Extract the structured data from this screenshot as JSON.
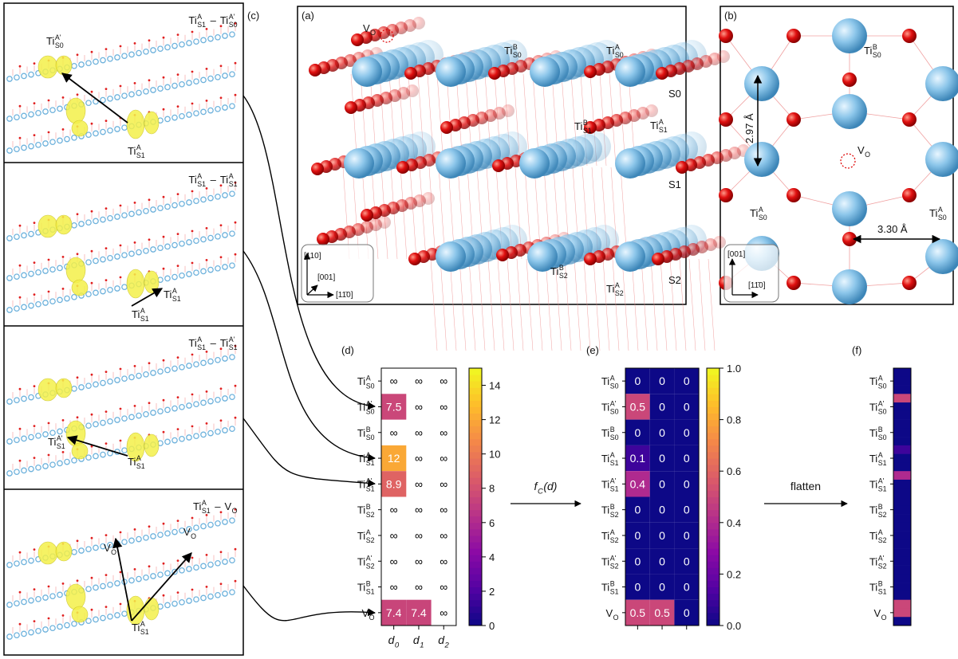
{
  "row_labels": [
    {
      "base": "Ti",
      "sup": "A",
      "sub": "S0"
    },
    {
      "base": "Ti",
      "sup": "A'",
      "sub": "S0"
    },
    {
      "base": "Ti",
      "sup": "B",
      "sub": "S0"
    },
    {
      "base": "Ti",
      "sup": "A",
      "sub": "S1"
    },
    {
      "base": "Ti",
      "sup": "A'",
      "sub": "S1"
    },
    {
      "base": "Ti",
      "sup": "B",
      "sub": "S2"
    },
    {
      "base": "Ti",
      "sup": "A",
      "sub": "S2"
    },
    {
      "base": "Ti",
      "sup": "A'",
      "sub": "S2"
    },
    {
      "base": "Ti",
      "sup": "B",
      "sub": "S1"
    },
    {
      "base": "V",
      "sub": "O"
    }
  ],
  "panel_c": {
    "label": "(c)",
    "panels": [
      {
        "title": {
          "left": {
            "base": "Ti",
            "sup": "A",
            "sub": "S1"
          },
          "sep": "–",
          "right": {
            "base": "Ti",
            "sup": "A'",
            "sub": "S0"
          }
        },
        "labels": [
          {
            "base": "Ti",
            "sup": "A'",
            "sub": "S0"
          },
          {
            "base": "Ti",
            "sup": "A",
            "sub": "S1"
          }
        ]
      },
      {
        "title": {
          "left": {
            "base": "Ti",
            "sup": "A",
            "sub": "S1"
          },
          "sep": "–",
          "right": {
            "base": "Ti",
            "sup": "A",
            "sub": "S1"
          }
        },
        "labels": [
          {
            "base": "Ti",
            "sup": "A",
            "sub": "S1"
          },
          {
            "base": "Ti",
            "sup": "A",
            "sub": "S1"
          }
        ]
      },
      {
        "title": {
          "left": {
            "base": "Ti",
            "sup": "A",
            "sub": "S1"
          },
          "sep": "–",
          "right": {
            "base": "Ti",
            "sup": "A'",
            "sub": "S1"
          }
        },
        "labels": [
          {
            "base": "Ti",
            "sup": "A'",
            "sub": "S1"
          },
          {
            "base": "Ti",
            "sup": "A",
            "sub": "S1"
          }
        ]
      },
      {
        "title": {
          "left": {
            "base": "Ti",
            "sup": "A",
            "sub": "S1"
          },
          "sep": "–",
          "right": {
            "base": "V",
            "sub": "O"
          }
        },
        "labels": [
          {
            "base": "V",
            "sub": "O"
          },
          {
            "base": "V",
            "sub": "O"
          },
          {
            "base": "Ti",
            "sup": "A",
            "sub": "S1"
          }
        ]
      }
    ]
  },
  "panel_a": {
    "label": "(a)",
    "labels": [
      {
        "base": "V",
        "sub": "O"
      },
      {
        "base": "Ti",
        "sup": "B",
        "sub": "S0"
      },
      {
        "base": "Ti",
        "sup": "A",
        "sub": "S0"
      },
      "S0",
      {
        "base": "Ti",
        "sup": "B",
        "sub": "S1"
      },
      {
        "base": "Ti",
        "sup": "A",
        "sub": "S1"
      },
      "S1",
      {
        "base": "Ti",
        "sup": "B",
        "sub": "S2"
      },
      {
        "base": "Ti",
        "sup": "A",
        "sub": "S2"
      },
      "S2"
    ],
    "axes": [
      "[110]",
      "[001]",
      "[11̄0]"
    ]
  },
  "panel_b": {
    "label": "(b)",
    "labels": [
      {
        "base": "Ti",
        "sup": "B",
        "sub": "S0"
      },
      {
        "base": "V",
        "sub": "O"
      },
      {
        "base": "Ti",
        "sup": "A",
        "sub": "S0"
      },
      {
        "base": "Ti",
        "sup": "A",
        "sub": "S0"
      }
    ],
    "distances": [
      "2.97 Å",
      "3.30 Å"
    ],
    "axes": [
      "[001]",
      "[11̄0]"
    ]
  },
  "panel_d": {
    "label": "(d)",
    "cells": [
      [
        "∞",
        "∞",
        "∞"
      ],
      [
        7.5,
        "∞",
        "∞"
      ],
      [
        "∞",
        "∞",
        "∞"
      ],
      [
        12,
        "∞",
        "∞"
      ],
      [
        8.9,
        "∞",
        "∞"
      ],
      [
        "∞",
        "∞",
        "∞"
      ],
      [
        "∞",
        "∞",
        "∞"
      ],
      [
        "∞",
        "∞",
        "∞"
      ],
      [
        "∞",
        "∞",
        "∞"
      ],
      [
        7.4,
        7.4,
        "∞"
      ]
    ],
    "column_labels": [
      {
        "base": "d",
        "sub": "0"
      },
      {
        "base": "d",
        "sub": "1"
      },
      {
        "base": "d",
        "sub": "2"
      }
    ],
    "colorbar": {
      "colormap": "plasma",
      "lim": [
        0,
        15
      ],
      "ticks": [
        0,
        2,
        4,
        6,
        8,
        10,
        12,
        14
      ]
    }
  },
  "panel_e": {
    "label": "(e)",
    "cells": [
      [
        0,
        0,
        0
      ],
      [
        0.5,
        0,
        0
      ],
      [
        0,
        0,
        0
      ],
      [
        0.1,
        0,
        0
      ],
      [
        0.4,
        0,
        0
      ],
      [
        0,
        0,
        0
      ],
      [
        0,
        0,
        0
      ],
      [
        0,
        0,
        0
      ],
      [
        0,
        0,
        0
      ],
      [
        0.5,
        0.5,
        0
      ]
    ],
    "colorbar": {
      "colormap": "plasma",
      "lim": [
        0,
        1
      ],
      "ticks": [
        {
          "value": 0,
          "label": "0.0"
        },
        0.2,
        0.4,
        0.6,
        0.8,
        {
          "value": 1,
          "label": "1.0"
        }
      ]
    }
  },
  "panel_f": {
    "label": "(f)"
  },
  "arrow_fc": {
    "base": "f",
    "sub": "C",
    "tail": "(d)"
  },
  "arrow_flatten": "flatten"
}
